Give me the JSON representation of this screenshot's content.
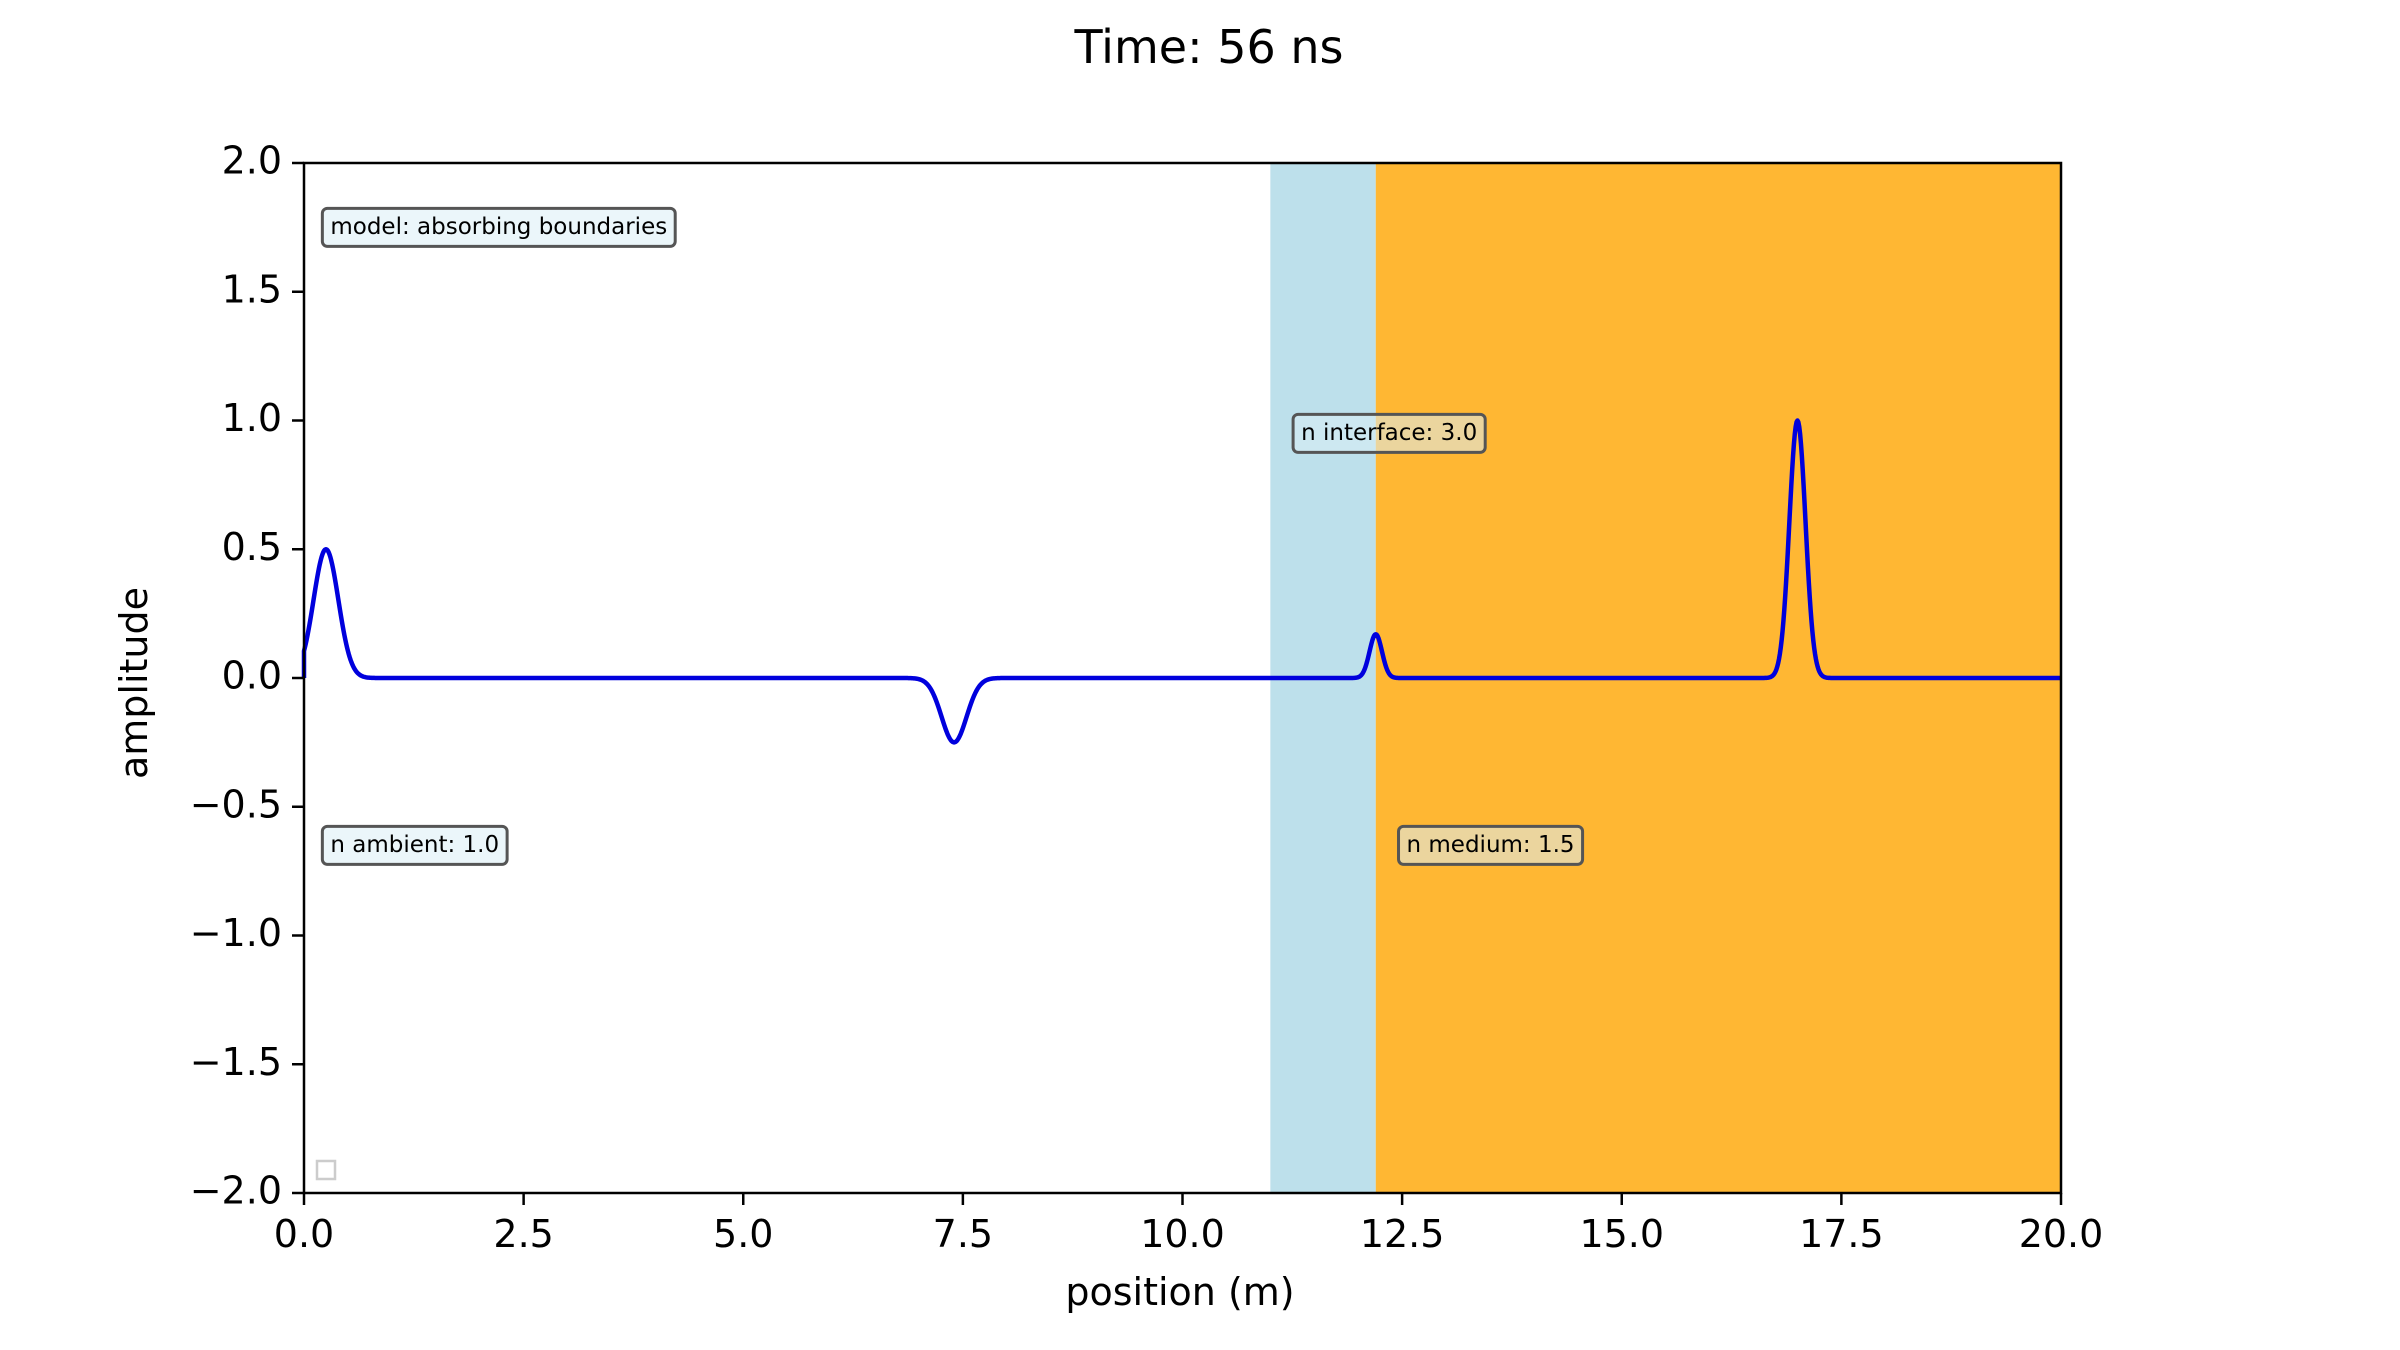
{
  "chart_data": {
    "type": "line",
    "title": "Time: 56 ns",
    "xlabel": "position (m)",
    "ylabel": "amplitude",
    "xlim": [
      0.0,
      20.0
    ],
    "ylim": [
      -2.0,
      2.0
    ],
    "grid": false,
    "xticks": [
      "0.0",
      "2.5",
      "5.0",
      "7.5",
      "10.0",
      "12.5",
      "15.0",
      "17.5",
      "20.0"
    ],
    "yticks": [
      "2.0",
      "1.5",
      "1.0",
      "0.5",
      "0.0",
      "−0.5",
      "−1.0",
      "−1.5",
      "−2.0"
    ],
    "regions": [
      {
        "x_start": 11.0,
        "x_end": 12.2,
        "color": "#add8e6"
      },
      {
        "x_start": 12.2,
        "x_end": 20.0,
        "color": "#ffa500"
      }
    ],
    "series": [
      {
        "color": "#0000dd",
        "pulses": [
          {
            "center": 0.25,
            "amplitude": 0.5,
            "width": 0.2
          },
          {
            "center": 7.4,
            "amplitude": -0.25,
            "width": 0.2
          },
          {
            "center": 12.2,
            "amplitude": 0.17,
            "width": 0.1
          },
          {
            "center": 17.0,
            "amplitude": 1.0,
            "width": 0.13
          }
        ],
        "x_start": 0.0,
        "x_end": 20.0
      }
    ],
    "annotations": [
      {
        "text": "model: absorbing boundaries",
        "x": 0.3,
        "y": 1.75
      },
      {
        "text": "n interface: 3.0",
        "x": 11.35,
        "y": 0.95
      },
      {
        "text": "n ambient: 1.0",
        "x": 0.3,
        "y": -0.65
      },
      {
        "text": "n medium: 1.5",
        "x": 12.55,
        "y": -0.65
      }
    ]
  }
}
